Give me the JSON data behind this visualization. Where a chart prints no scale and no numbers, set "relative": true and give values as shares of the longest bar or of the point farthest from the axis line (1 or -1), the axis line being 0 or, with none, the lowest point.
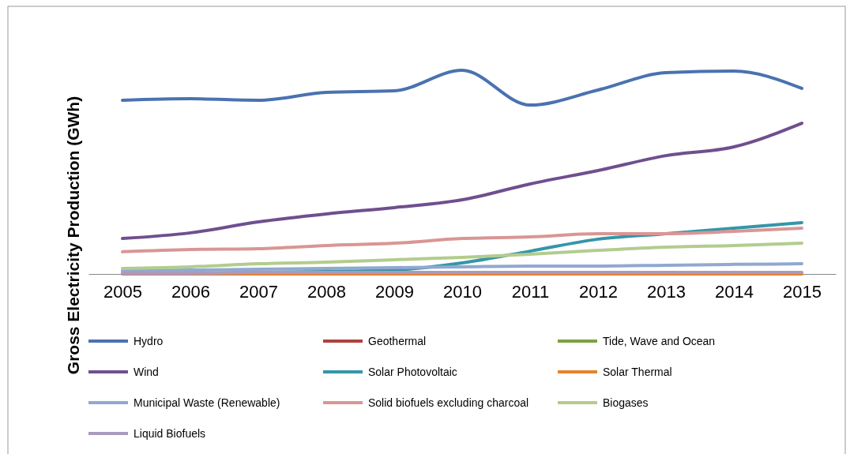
{
  "chart_data": {
    "type": "line",
    "relative": true,
    "ylabel": "Gross Electricity Production (GWh)",
    "categories": [
      "2005",
      "2006",
      "2007",
      "2008",
      "2009",
      "2010",
      "2011",
      "2012",
      "2013",
      "2014",
      "2015"
    ],
    "legend": "bottom",
    "series": [
      {
        "name": "Hydro",
        "color": "#4a72b0",
        "values": [
          0.853,
          0.86,
          0.853,
          0.891,
          0.899,
          1,
          0.829,
          0.903,
          0.988,
          0.996,
          0.911
        ]
      },
      {
        "name": "Geothermal",
        "color": "#b0413e",
        "values": [
          null,
          null,
          null,
          null,
          null,
          null,
          null,
          null,
          null,
          null,
          null
        ]
      },
      {
        "name": "Tide, Wave and Ocean",
        "color": "#7ba23f",
        "values": [
          null,
          null,
          null,
          null,
          null,
          null,
          null,
          null,
          null,
          null,
          null
        ]
      },
      {
        "name": "Wind",
        "color": "#6f4f8f",
        "values": [
          0.174,
          0.202,
          0.256,
          0.295,
          0.326,
          0.364,
          0.442,
          0.508,
          0.581,
          0.624,
          0.74
        ]
      },
      {
        "name": "Solar Photovoltaic",
        "color": "#3596a8",
        "values": [
          0.004,
          0.004,
          0.008,
          0.012,
          0.019,
          0.054,
          0.112,
          0.171,
          0.198,
          0.225,
          0.252
        ]
      },
      {
        "name": "Solar Thermal",
        "color": "#e5832d",
        "values": [
          0,
          0,
          0,
          0,
          0,
          0,
          0,
          0,
          0,
          0,
          0
        ]
      },
      {
        "name": "Municipal Waste (Renewable)",
        "color": "#91a8d0",
        "values": [
          0.016,
          0.019,
          0.023,
          0.027,
          0.031,
          0.035,
          0.039,
          0.039,
          0.043,
          0.047,
          0.05
        ]
      },
      {
        "name": "Solid biofuels excluding charcoal",
        "color": "#d99694",
        "values": [
          0.109,
          0.12,
          0.124,
          0.14,
          0.151,
          0.174,
          0.182,
          0.198,
          0.198,
          0.209,
          0.225
        ]
      },
      {
        "name": "Biogases",
        "color": "#b3cc8e",
        "values": [
          0.027,
          0.035,
          0.05,
          0.058,
          0.07,
          0.081,
          0.097,
          0.116,
          0.132,
          0.14,
          0.151
        ]
      },
      {
        "name": "Liquid Biofuels",
        "color": "#a89bbe",
        "values": [
          0.004,
          0.004,
          0.008,
          0.008,
          0.008,
          0.008,
          0.008,
          0.008,
          0.008,
          0.008,
          0.008
        ]
      }
    ]
  }
}
